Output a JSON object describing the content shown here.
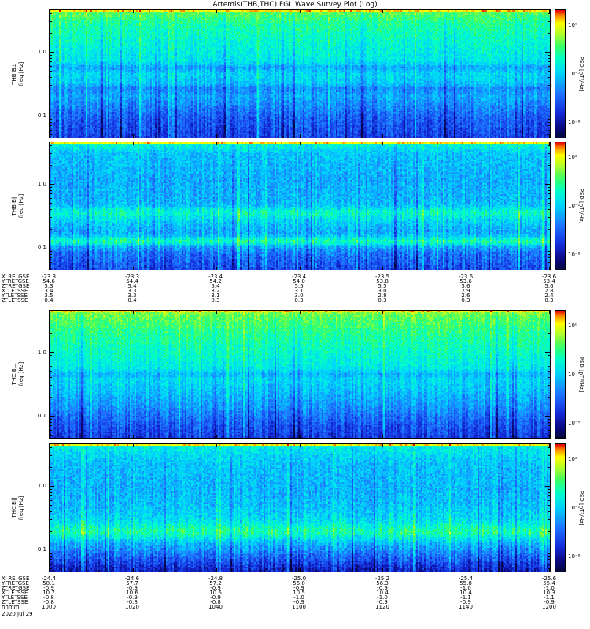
{
  "title": "Artemis(THB,THC) FGL Wave Survey Plot (Log)",
  "date_label": "2020 Jul 29",
  "colors": {
    "background": "#ffffff",
    "axis": "#000000",
    "colormap": [
      [
        0.0,
        5,
        6,
        60
      ],
      [
        0.08,
        10,
        10,
        130
      ],
      [
        0.2,
        20,
        45,
        222
      ],
      [
        0.35,
        30,
        120,
        255
      ],
      [
        0.5,
        0,
        210,
        255
      ],
      [
        0.62,
        0,
        255,
        200
      ],
      [
        0.72,
        60,
        255,
        100
      ],
      [
        0.82,
        180,
        255,
        40
      ],
      [
        0.9,
        255,
        255,
        0
      ],
      [
        0.96,
        255,
        140,
        0
      ],
      [
        1.0,
        230,
        0,
        0
      ]
    ]
  },
  "chart_data": [
    {
      "type": "heatmap",
      "spacecraft": "THB",
      "component": "B-perpendicular",
      "ylabel_line1": "THB B⊥",
      "ylabel_line2": "freq [Hz]",
      "y_ticks": [
        {
          "label": "1.0",
          "freq": 1.0
        },
        {
          "label": "0.1",
          "freq": 0.1
        }
      ],
      "freq_range_hz": [
        0.045,
        4.5
      ],
      "x_time_ticks": [
        "1000",
        "1020",
        "1040",
        "1100",
        "1120",
        "1140",
        "1200"
      ],
      "colorbar": {
        "label": "PSD [nT²/Hz]",
        "ticks": [
          "10⁰",
          "10⁻³",
          "10⁻⁶"
        ]
      },
      "description": "Broadband wave power, decreasing from high PSD at high frequency (green/yellow) to low PSD (dark blue) at low frequency",
      "profile": [
        [
          0,
          0.9
        ],
        [
          0.012,
          0.74
        ],
        [
          0.1,
          0.66
        ],
        [
          0.3,
          0.58
        ],
        [
          0.5,
          0.52
        ],
        [
          0.7,
          0.42
        ],
        [
          0.85,
          0.3
        ],
        [
          1,
          0.24
        ]
      ],
      "noise": 0.14,
      "bands": [
        [
          0.45,
          0.03,
          -0.1
        ],
        [
          0.62,
          0.03,
          -0.08
        ]
      ]
    },
    {
      "type": "heatmap",
      "spacecraft": "THB",
      "component": "B-parallel",
      "ylabel_line1": "THB B∥",
      "ylabel_line2": "freq [Hz]",
      "y_ticks": [
        {
          "label": "1.0",
          "freq": 1.0
        },
        {
          "label": "0.1",
          "freq": 0.1
        }
      ],
      "freq_range_hz": [
        0.045,
        4.5
      ],
      "x_time_ticks": [
        "1000",
        "1020",
        "1040",
        "1100",
        "1120",
        "1140",
        "1200"
      ],
      "colorbar": {
        "label": "PSD [nT²/Hz]",
        "ticks": [
          "10²",
          "10⁻²",
          "10⁻⁶"
        ]
      },
      "description": "Mostly blue speckled low power with cyan horizontal bands in lower half and thin green strip at top",
      "profile": [
        [
          0,
          0.88
        ],
        [
          0.012,
          0.6
        ],
        [
          0.08,
          0.48
        ],
        [
          0.3,
          0.44
        ],
        [
          0.5,
          0.46
        ],
        [
          0.6,
          0.52
        ],
        [
          0.7,
          0.44
        ],
        [
          0.78,
          0.5
        ],
        [
          0.88,
          0.34
        ],
        [
          1,
          0.26
        ]
      ],
      "noise": 0.16,
      "bands": [
        [
          0.55,
          0.04,
          0.12
        ],
        [
          0.78,
          0.03,
          0.14
        ]
      ]
    },
    {
      "type": "heatmap",
      "spacecraft": "THC",
      "component": "B-perpendicular",
      "ylabel_line1": "THC B⊥",
      "ylabel_line2": "freq [Hz]",
      "y_ticks": [
        {
          "label": "1.0",
          "freq": 1.0
        },
        {
          "label": "0.1",
          "freq": 0.1
        }
      ],
      "freq_range_hz": [
        0.045,
        4.5
      ],
      "x_time_ticks": [
        "1000",
        "1020",
        "1040",
        "1100",
        "1120",
        "1140",
        "1200"
      ],
      "colorbar": {
        "label": "PSD [nT²/Hz]",
        "ticks": [
          "10⁰",
          "10⁻³",
          "10⁻⁶"
        ]
      },
      "description": "Smooth gradient from green top through cyan to dark blue bottom with vertical striping",
      "profile": [
        [
          0,
          0.9
        ],
        [
          0.015,
          0.76
        ],
        [
          0.15,
          0.68
        ],
        [
          0.35,
          0.6
        ],
        [
          0.55,
          0.52
        ],
        [
          0.75,
          0.4
        ],
        [
          0.9,
          0.28
        ],
        [
          1,
          0.22
        ]
      ],
      "noise": 0.13,
      "bands": [
        [
          0.5,
          0.03,
          -0.08
        ]
      ]
    },
    {
      "type": "heatmap",
      "spacecraft": "THC",
      "component": "B-parallel",
      "ylabel_line1": "THC B∥",
      "ylabel_line2": "freq [Hz]",
      "y_ticks": [
        {
          "label": "1.0",
          "freq": 1.0
        },
        {
          "label": "0.1",
          "freq": 0.1
        }
      ],
      "freq_range_hz": [
        0.045,
        4.5
      ],
      "x_time_ticks": [
        "1000",
        "1020",
        "1040",
        "1100",
        "1120",
        "1140",
        "1200"
      ],
      "colorbar": {
        "label": "PSD [nT²/Hz]",
        "ticks": [
          "10²",
          "10⁻²",
          "10⁻⁶"
        ]
      },
      "description": "Blue speckle with bright cyan band in lower third and very dark navy bottom edge",
      "profile": [
        [
          0,
          0.88
        ],
        [
          0.015,
          0.56
        ],
        [
          0.15,
          0.48
        ],
        [
          0.35,
          0.45
        ],
        [
          0.5,
          0.48
        ],
        [
          0.62,
          0.54
        ],
        [
          0.72,
          0.56
        ],
        [
          0.8,
          0.44
        ],
        [
          0.9,
          0.3
        ],
        [
          1,
          0.16
        ]
      ],
      "noise": 0.16,
      "bands": [
        [
          0.68,
          0.05,
          0.1
        ]
      ]
    }
  ],
  "ephemeris": {
    "top": {
      "rows": [
        {
          "label": "X_RE_GSE",
          "values": [
            "-23.3",
            "-23.3",
            "-23.4",
            "-23.4",
            "-23.5",
            "-23.6",
            "-23.6"
          ]
        },
        {
          "label": "Y_RE_GSE",
          "values": [
            "54.6",
            "54.4",
            "54.2",
            "54.0",
            "53.8",
            "53.6",
            "53.4"
          ]
        },
        {
          "label": "Z_RE_GSE",
          "values": [
            "5.3",
            "5.4",
            "5.4",
            "5.5",
            "5.5",
            "5.6",
            "5.6"
          ]
        },
        {
          "label": "X_LE_SSE",
          "values": [
            "3.4",
            "3.3",
            "3.2",
            "3.1",
            "3.0",
            "2.9",
            "2.8"
          ]
        },
        {
          "label": "Y_LE_SSE",
          "values": [
            "3.5",
            "3.3",
            "3.1",
            "3.0",
            "2.8",
            "2.6",
            "2.4"
          ]
        },
        {
          "label": "Z_LE_SSE",
          "values": [
            "0.4",
            "0.4",
            "0.3",
            "0.3",
            "0.3",
            "0.3",
            "0.3"
          ]
        }
      ]
    },
    "bottom": {
      "rows": [
        {
          "label": "X_RE_GSE",
          "values": [
            "-24.4",
            "-24.6",
            "-24.8",
            "-25.0",
            "-25.2",
            "-25.4",
            "-25.6"
          ]
        },
        {
          "label": "Y_RE_GSE",
          "values": [
            "58.1",
            "57.7",
            "57.2",
            "56.8",
            "56.3",
            "55.8",
            "55.4"
          ]
        },
        {
          "label": "Z_RE_GSE",
          "values": [
            "-0.9",
            "-0.9",
            "-0.9",
            "-0.9",
            "-0.9",
            "-1.0",
            "-1.0"
          ]
        },
        {
          "label": "X_LE_SSE",
          "values": [
            "10.7",
            "10.6",
            "10.6",
            "10.5",
            "10.4",
            "10.4",
            "10.3"
          ]
        },
        {
          "label": "Y_LE_SSE",
          "values": [
            "-0.8",
            "-0.9",
            "-0.9",
            "-1.0",
            "-1.0",
            "-1.1",
            "-1.1"
          ]
        },
        {
          "label": "Z_LE_SSE",
          "values": [
            "-0.8",
            "-0.8",
            "-0.8",
            "-0.9",
            "-0.9",
            "-0.9",
            "-0.9"
          ]
        }
      ],
      "time_row": {
        "label": "hhmm",
        "values": [
          "1000",
          "1020",
          "1040",
          "1100",
          "1120",
          "1140",
          "1200"
        ]
      }
    }
  }
}
